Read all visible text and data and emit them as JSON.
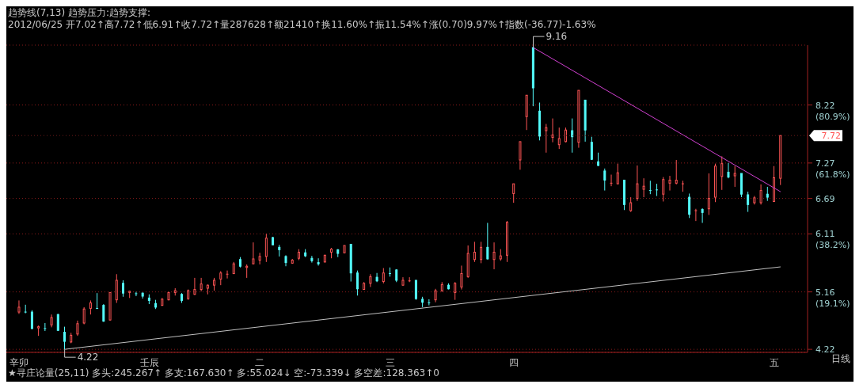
{
  "chart_data": {
    "type": "candlestick",
    "categories": [
      "辛卯",
      null,
      null,
      null,
      null,
      null,
      null,
      null,
      null,
      null,
      null,
      null,
      null,
      null,
      null,
      null,
      null,
      null,
      null,
      null,
      "壬辰",
      null,
      null,
      null,
      null,
      null,
      null,
      null,
      null,
      null,
      null,
      null,
      null,
      null,
      null,
      null,
      null,
      "二",
      null,
      null,
      null,
      null,
      null,
      null,
      null,
      null,
      null,
      null,
      null,
      null,
      null,
      null,
      null,
      null,
      null,
      null,
      null,
      "三",
      null,
      null,
      null,
      null,
      null,
      null,
      null,
      null,
      null,
      null,
      null,
      null,
      null,
      null,
      null,
      null,
      null,
      null,
      "四",
      null,
      null,
      null,
      null,
      null,
      null,
      null,
      null,
      null,
      null,
      null,
      null,
      null,
      null,
      null,
      null,
      null,
      null,
      null,
      null,
      null,
      null,
      null,
      null,
      null,
      null,
      null,
      null,
      null,
      null,
      null,
      null,
      null,
      null,
      null,
      null,
      null,
      null,
      null,
      "五",
      null
    ],
    "ohlc": [
      [
        4.83,
        5.02,
        4.8,
        4.91
      ],
      [
        4.83,
        4.95,
        4.81,
        4.83
      ],
      [
        4.83,
        4.86,
        4.55,
        4.56
      ],
      [
        4.57,
        4.61,
        4.44,
        4.59
      ],
      [
        4.56,
        4.65,
        4.52,
        4.56
      ],
      [
        4.62,
        4.79,
        4.58,
        4.74
      ],
      [
        4.79,
        4.8,
        4.52,
        4.53
      ],
      [
        4.5,
        4.59,
        4.22,
        4.35
      ],
      [
        4.34,
        4.49,
        4.32,
        4.45
      ],
      [
        4.47,
        4.69,
        4.44,
        4.64
      ],
      [
        4.65,
        4.91,
        4.63,
        4.88
      ],
      [
        4.89,
        5.02,
        4.79,
        4.98
      ],
      [
        4.89,
        5.14,
        4.88,
        4.89
      ],
      [
        4.94,
        4.96,
        4.67,
        4.68
      ],
      [
        4.7,
        5.15,
        4.69,
        5.15
      ],
      [
        5.03,
        5.45,
        4.98,
        5.35
      ],
      [
        5.3,
        5.35,
        5.08,
        5.14
      ],
      [
        5.15,
        5.18,
        5.06,
        5.17
      ],
      [
        5.13,
        5.16,
        5.09,
        5.13
      ],
      [
        5.14,
        5.15,
        5.05,
        5.09
      ],
      [
        5.06,
        5.12,
        4.96,
        5.02
      ],
      [
        4.97,
        5.03,
        4.88,
        4.91
      ],
      [
        4.94,
        5.06,
        4.93,
        5.04
      ],
      [
        5.03,
        5.16,
        5.02,
        5.15
      ],
      [
        5.15,
        5.22,
        5.1,
        5.18
      ],
      [
        5.12,
        5.14,
        4.98,
        5.02
      ],
      [
        5.05,
        5.2,
        5.03,
        5.18
      ],
      [
        5.12,
        5.39,
        5.11,
        5.2
      ],
      [
        5.2,
        5.39,
        5.17,
        5.29
      ],
      [
        5.22,
        5.28,
        5.12,
        5.27
      ],
      [
        5.27,
        5.39,
        5.18,
        5.35
      ],
      [
        5.37,
        5.5,
        5.27,
        5.47
      ],
      [
        5.45,
        5.51,
        5.38,
        5.46
      ],
      [
        5.46,
        5.65,
        5.45,
        5.62
      ],
      [
        5.69,
        5.73,
        5.56,
        5.58
      ],
      [
        5.56,
        5.61,
        5.39,
        5.58
      ],
      [
        5.62,
        5.97,
        5.61,
        5.7
      ],
      [
        5.68,
        5.8,
        5.61,
        5.74
      ],
      [
        5.74,
        6.11,
        5.65,
        6.04
      ],
      [
        6.05,
        6.06,
        5.93,
        5.93
      ],
      [
        5.89,
        5.93,
        5.74,
        5.85
      ],
      [
        5.74,
        5.76,
        5.58,
        5.64
      ],
      [
        5.63,
        5.7,
        5.62,
        5.68
      ],
      [
        5.71,
        5.86,
        5.68,
        5.81
      ],
      [
        5.8,
        5.86,
        5.73,
        5.75
      ],
      [
        5.71,
        5.75,
        5.64,
        5.67
      ],
      [
        5.64,
        5.71,
        5.59,
        5.62
      ],
      [
        5.65,
        5.77,
        5.64,
        5.76
      ],
      [
        5.81,
        5.88,
        5.71,
        5.86
      ],
      [
        5.85,
        5.86,
        5.73,
        5.79
      ],
      [
        5.8,
        5.92,
        5.79,
        5.92
      ],
      [
        5.94,
        5.94,
        5.33,
        5.47
      ],
      [
        5.47,
        5.51,
        5.1,
        5.21
      ],
      [
        5.2,
        5.32,
        5.2,
        5.3
      ],
      [
        5.3,
        5.45,
        5.24,
        5.41
      ],
      [
        5.4,
        5.47,
        5.32,
        5.34
      ],
      [
        5.33,
        5.55,
        5.3,
        5.47
      ],
      [
        5.46,
        5.56,
        5.41,
        5.46
      ],
      [
        5.52,
        5.53,
        5.32,
        5.35
      ],
      [
        5.27,
        5.4,
        5.26,
        5.35
      ],
      [
        5.34,
        5.4,
        5.32,
        5.35
      ],
      [
        5.35,
        5.35,
        5.03,
        5.05
      ],
      [
        5.04,
        5.08,
        4.91,
        4.99
      ],
      [
        4.98,
        5.04,
        4.94,
        4.98
      ],
      [
        5.03,
        5.21,
        4.99,
        5.18
      ],
      [
        5.18,
        5.32,
        5.16,
        5.28
      ],
      [
        5.27,
        5.3,
        5.2,
        5.21
      ],
      [
        5.15,
        5.32,
        5.03,
        5.3
      ],
      [
        5.24,
        5.59,
        5.2,
        5.46
      ],
      [
        5.41,
        5.92,
        5.39,
        5.79
      ],
      [
        5.69,
        5.98,
        5.65,
        5.81
      ],
      [
        5.69,
        5.98,
        5.63,
        5.89
      ],
      [
        5.89,
        6.29,
        5.69,
        5.7
      ],
      [
        5.69,
        5.97,
        5.53,
        5.81
      ],
      [
        5.7,
        5.86,
        5.67,
        5.75
      ],
      [
        5.76,
        6.32,
        5.65,
        6.3
      ],
      [
        6.77,
        6.93,
        6.62,
        6.93
      ],
      [
        7.32,
        7.62,
        7.16,
        7.62
      ],
      [
        8.03,
        8.38,
        7.81,
        8.38
      ],
      [
        9.16,
        9.16,
        8.2,
        8.5
      ],
      [
        8.12,
        8.26,
        7.64,
        7.71
      ],
      [
        7.8,
        7.91,
        7.44,
        7.85
      ],
      [
        7.69,
        8.0,
        7.61,
        7.73
      ],
      [
        7.57,
        7.85,
        7.5,
        7.67
      ],
      [
        7.62,
        7.85,
        7.61,
        7.81
      ],
      [
        7.8,
        8.0,
        7.44,
        7.7
      ],
      [
        7.61,
        8.46,
        7.52,
        8.46
      ],
      [
        8.3,
        8.3,
        7.62,
        7.81
      ],
      [
        7.61,
        7.7,
        7.32,
        7.33
      ],
      [
        7.29,
        7.44,
        7.22,
        7.23
      ],
      [
        7.14,
        7.18,
        6.82,
        6.99
      ],
      [
        6.94,
        7.08,
        6.89,
        6.95
      ],
      [
        6.93,
        7.26,
        6.92,
        7.11
      ],
      [
        6.99,
        6.99,
        6.5,
        6.59
      ],
      [
        6.49,
        6.71,
        6.47,
        6.62
      ],
      [
        6.69,
        7.23,
        6.65,
        6.93
      ],
      [
        6.84,
        7.02,
        6.71,
        6.89
      ],
      [
        6.82,
        6.98,
        6.76,
        6.82
      ],
      [
        6.83,
        6.93,
        6.73,
        6.83
      ],
      [
        6.76,
        7.04,
        6.64,
        7.0
      ],
      [
        6.94,
        7.06,
        6.82,
        6.99
      ],
      [
        6.94,
        7.32,
        6.92,
        6.99
      ],
      [
        6.93,
        6.98,
        6.8,
        6.94
      ],
      [
        6.71,
        6.77,
        6.37,
        6.43
      ],
      [
        6.49,
        6.52,
        6.32,
        6.5
      ],
      [
        6.51,
        6.53,
        6.29,
        6.46
      ],
      [
        6.52,
        7.1,
        6.42,
        6.69
      ],
      [
        6.71,
        7.26,
        6.63,
        7.22
      ],
      [
        7.05,
        7.38,
        6.83,
        7.26
      ],
      [
        7.12,
        7.27,
        7.02,
        7.04
      ],
      [
        7.06,
        7.22,
        6.88,
        7.1
      ],
      [
        7.1,
        7.1,
        6.71,
        6.76
      ],
      [
        6.75,
        6.8,
        6.47,
        6.59
      ],
      [
        6.62,
        6.73,
        6.59,
        6.7
      ],
      [
        6.62,
        6.92,
        6.59,
        6.82
      ],
      [
        6.76,
        6.88,
        6.65,
        6.71
      ],
      [
        6.64,
        7.22,
        6.64,
        7.03
      ],
      [
        7.02,
        7.72,
        6.91,
        7.72
      ]
    ],
    "colors": [
      "#ff5555",
      "#54fcfc",
      "#54fcfc",
      "#ff5555",
      "#54fcfc",
      "#ff5555",
      "#54fcfc",
      "#54fcfc",
      "#ff5555",
      "#ff5555",
      "#ff5555",
      "#ff5555",
      "#54fcfc",
      "#54fcfc",
      "#ff5555",
      "#ff5555",
      "#54fcfc",
      "#ff5555",
      "#54fcfc",
      "#54fcfc",
      "#54fcfc",
      "#54fcfc",
      "#ff5555",
      "#ff5555",
      "#ff5555",
      "#54fcfc",
      "#ff5555",
      "#ff5555",
      "#ff5555",
      "#ff5555",
      "#ff5555",
      "#ff5555",
      "#ff5555",
      "#ff5555",
      "#54fcfc",
      "#ff5555",
      "#ff5555",
      "#ff5555",
      "#ff5555",
      "#54fcfc",
      "#54fcfc",
      "#54fcfc",
      "#ff5555",
      "#ff5555",
      "#54fcfc",
      "#54fcfc",
      "#54fcfc",
      "#ff5555",
      "#ff5555",
      "#54fcfc",
      "#ff5555",
      "#54fcfc",
      "#54fcfc",
      "#ff5555",
      "#ff5555",
      "#54fcfc",
      "#ff5555",
      "#54fcfc",
      "#54fcfc",
      "#ff5555",
      "#ff5555",
      "#54fcfc",
      "#54fcfc",
      "#54fcfc",
      "#ff5555",
      "#ff5555",
      "#54fcfc",
      "#ff5555",
      "#ff5555",
      "#ff5555",
      "#ff5555",
      "#ff5555",
      "#54fcfc",
      "#ff5555",
      "#ff5555",
      "#ff5555",
      "#ff5555",
      "#ff5555",
      "#ff5555",
      "#54fcfc",
      "#54fcfc",
      "#ff5555",
      "#ff5555",
      "#ff5555",
      "#ff5555",
      "#54fcfc",
      "#ff5555",
      "#54fcfc",
      "#54fcfc",
      "#54fcfc",
      "#54fcfc",
      "#ff5555",
      "#ff5555",
      "#54fcfc",
      "#ff5555",
      "#ff5555",
      "#ff5555",
      "#54fcfc",
      "#54fcfc",
      "#ff5555",
      "#ff5555",
      "#ff5555",
      "#ff5555",
      "#54fcfc",
      "#ff5555",
      "#54fcfc",
      "#ff5555",
      "#ff5555",
      "#ff5555",
      "#54fcfc",
      "#ff5555",
      "#54fcfc",
      "#54fcfc",
      "#ff5555",
      "#ff5555",
      "#54fcfc",
      "#ff5555",
      "#ff5555"
    ],
    "series": [
      {
        "type": "line",
        "color": "#d040d0",
        "values": [
          null,
          null,
          null,
          null,
          null,
          null,
          null,
          null,
          null,
          null,
          null,
          null,
          null,
          null,
          null,
          null,
          null,
          null,
          null,
          null,
          null,
          null,
          null,
          null,
          null,
          null,
          null,
          null,
          null,
          null,
          null,
          null,
          null,
          null,
          null,
          null,
          null,
          null,
          null,
          null,
          null,
          null,
          null,
          null,
          null,
          null,
          null,
          null,
          null,
          null,
          null,
          null,
          null,
          null,
          null,
          null,
          null,
          null,
          null,
          null,
          null,
          null,
          null,
          null,
          null,
          null,
          null,
          null,
          null,
          null,
          null,
          null,
          null,
          null,
          null,
          null,
          null,
          null,
          null,
          9.16,
          null,
          null,
          null,
          null,
          null,
          null,
          null,
          null,
          null,
          null,
          null,
          null,
          null,
          null,
          null,
          null,
          null,
          null,
          null,
          null,
          null,
          null,
          null,
          null,
          null,
          null,
          null,
          null,
          null,
          null,
          null,
          null,
          null,
          null,
          null,
          null,
          null,
          6.8
        ]
      },
      {
        "type": "line",
        "color": "#c0c0c0",
        "values": [
          null,
          null,
          null,
          null,
          null,
          null,
          null,
          4.22,
          null,
          null,
          null,
          null,
          null,
          null,
          null,
          null,
          null,
          null,
          null,
          null,
          null,
          null,
          null,
          null,
          null,
          null,
          null,
          null,
          null,
          null,
          null,
          null,
          null,
          null,
          null,
          null,
          null,
          null,
          null,
          null,
          null,
          null,
          null,
          null,
          null,
          null,
          null,
          null,
          null,
          null,
          null,
          null,
          null,
          null,
          null,
          null,
          null,
          null,
          null,
          null,
          null,
          null,
          null,
          null,
          null,
          null,
          null,
          null,
          null,
          null,
          null,
          null,
          null,
          null,
          null,
          null,
          null,
          null,
          null,
          null,
          null,
          null,
          null,
          null,
          null,
          null,
          null,
          null,
          null,
          null,
          null,
          null,
          null,
          null,
          null,
          null,
          null,
          null,
          null,
          null,
          null,
          null,
          null,
          null,
          null,
          null,
          null,
          null,
          null,
          null,
          null,
          null,
          null,
          null,
          null,
          null,
          null,
          5.57
        ]
      }
    ],
    "ylim": [
      4.17,
      9.2
    ],
    "yticks": [
      4.22,
      {
        "value": 5.16,
        "label": "5.16\n(19.1%)"
      },
      {
        "value": 6.11,
        "label": "6.11\n(38.2%)"
      },
      6.69,
      {
        "value": 7.27,
        "label": "7.27\n(61.8%)"
      },
      {
        "value": 8.22,
        "label": "8.22\n(80.9%)"
      }
    ],
    "grid": "y",
    "ref_lines": [
      {
        "axis": "y",
        "value": 7.72,
        "label": "7.72"
      }
    ],
    "annotations": [
      "趋势线(7,13) 趋势压力:趋势支撑:",
      "2012/06/25 开7.02↑高7.72↑低6.91↑收7.72↑量287628↑额21410↑换11.60%↑振11.54%↑涨(0.70)9.97%↑指数(-36.77)-1.63%",
      "日线",
      "★寻庄论量(25,11) 多头:245.267↑ 多支:167.630↑ 多:55.024↓ 空:-73.339↓ 多空差:128.363↑0",
      "9.16",
      "4.22"
    ]
  }
}
